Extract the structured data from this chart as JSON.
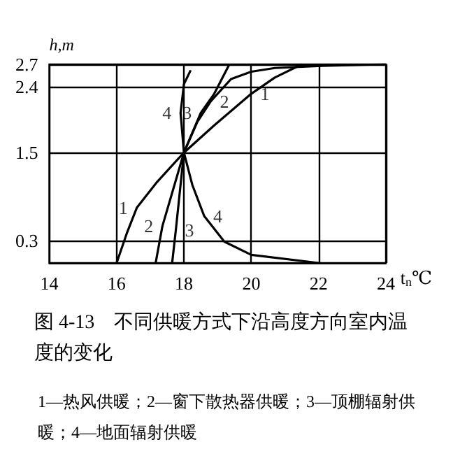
{
  "chart_data": {
    "type": "line",
    "title": "图 4-13　不同供暖方式下沿高度方向室内温度的变化",
    "xlabel": "t$_{n}$℃",
    "ylabel": "h,m",
    "xlim": [
      14,
      24
    ],
    "xticks": [
      14,
      16,
      18,
      20,
      22,
      24
    ],
    "ylim": [
      0,
      2.7
    ],
    "yticks": [
      0.3,
      1.5,
      2.4,
      2.7
    ],
    "grid": true,
    "marker": "none",
    "line_style": "solid",
    "series": [
      {
        "color": "#000000",
        "x": [
          16.0,
          16.3,
          16.6,
          17.2,
          18,
          18.9,
          20,
          20.7,
          21.5
        ],
        "values": [
          0,
          0.4,
          0.75,
          1.1,
          1.5,
          1.87,
          2.3,
          2.52,
          2.7
        ]
      },
      {
        "color": "#000000",
        "x": [
          17.16,
          17.36,
          18,
          18.4,
          18.8,
          19.4,
          20,
          20.7,
          22.1,
          24
        ],
        "values": [
          0,
          0.5,
          1.5,
          1.92,
          2.2,
          2.5,
          2.6,
          2.65,
          2.68,
          2.7
        ]
      },
      {
        "color": "#000000",
        "x": [
          17.65,
          17.76,
          18,
          18.5,
          18.9,
          19.35
        ],
        "values": [
          0,
          0.45,
          1.5,
          2.04,
          2.3,
          2.7
        ]
      },
      {
        "color": "#000000",
        "x": [
          22,
          20,
          19.2,
          18.6,
          18.25,
          18,
          17.9,
          18.0,
          18.2
        ],
        "values": [
          0,
          0.11,
          0.29,
          0.64,
          1.06,
          1.5,
          2.04,
          2.43,
          2.62
        ]
      }
    ],
    "annotations": [
      {
        "text": "1",
        "x": 16.6,
        "y": 0.75
      },
      {
        "text": "2",
        "x": 17.36,
        "y": 0.5
      },
      {
        "text": "3",
        "x": 17.76,
        "y": 0.45
      },
      {
        "text": "4",
        "x": 18.6,
        "y": 0.64
      },
      {
        "text": "4",
        "x": 17.9,
        "y": 2.04
      },
      {
        "text": "3",
        "x": 18.5,
        "y": 2.04
      },
      {
        "text": "2",
        "x": 18.8,
        "y": 2.2
      },
      {
        "text": "1",
        "x": 20,
        "y": 2.3
      },
      "1—热风供暖；2—窗下散热器供暖；3—顶棚辐射供暖；4—地面辐射供暖"
    ]
  }
}
